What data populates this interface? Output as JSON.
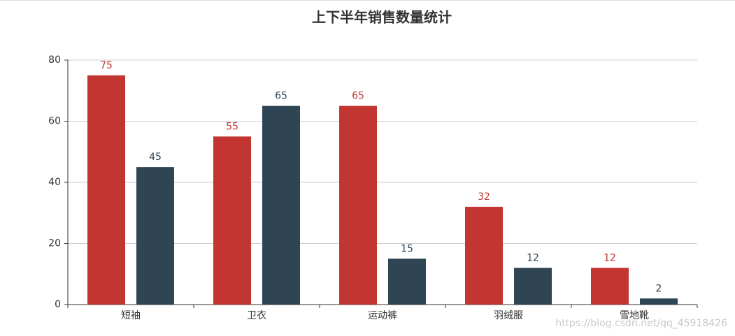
{
  "chart_data": {
    "type": "bar",
    "title": "上下半年销售数量统计",
    "categories": [
      "短袖",
      "卫衣",
      "运动裤",
      "羽绒服",
      "雪地靴"
    ],
    "series": [
      {
        "color": "#c23531",
        "values": [
          75,
          55,
          65,
          32,
          12
        ]
      },
      {
        "color": "#2f4554",
        "values": [
          45,
          65,
          15,
          12,
          2
        ]
      }
    ],
    "ylim": [
      0,
      80
    ],
    "yticks": [
      0,
      20,
      40,
      60,
      80
    ],
    "grid": true
  },
  "watermark": "https://blog.csdn.net/qq_45918426"
}
